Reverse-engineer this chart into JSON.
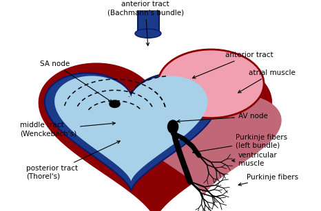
{
  "bg_color": "#ffffff",
  "labels": {
    "anterior_tract_bachmann": "anterior tract\n(Bachmann's bundle)",
    "anterior_tract": "anterior tract",
    "atrial_muscle": "atrial muscle",
    "sa_node": "SA node",
    "av_node": "AV node",
    "middle_tract": "middle tract\n(Wenckebach's)",
    "posterior_tract": "posterior tract\n(Thorel's)",
    "purkinje_left": "Purkinje fibers\n(left bundle)",
    "ventricular_muscle": "ventricular\nmuscle",
    "purkinje_fibers": "Purkinje fibers"
  },
  "colors": {
    "dark_red": "#8B0000",
    "dark_blue": "#1a3a8a",
    "light_blue": "#a8d0e8",
    "light_pink": "#f0a0b0",
    "black": "#000000",
    "bg": "#ffffff",
    "crimson": "#c0203a",
    "navy": "#0a1a6a"
  }
}
